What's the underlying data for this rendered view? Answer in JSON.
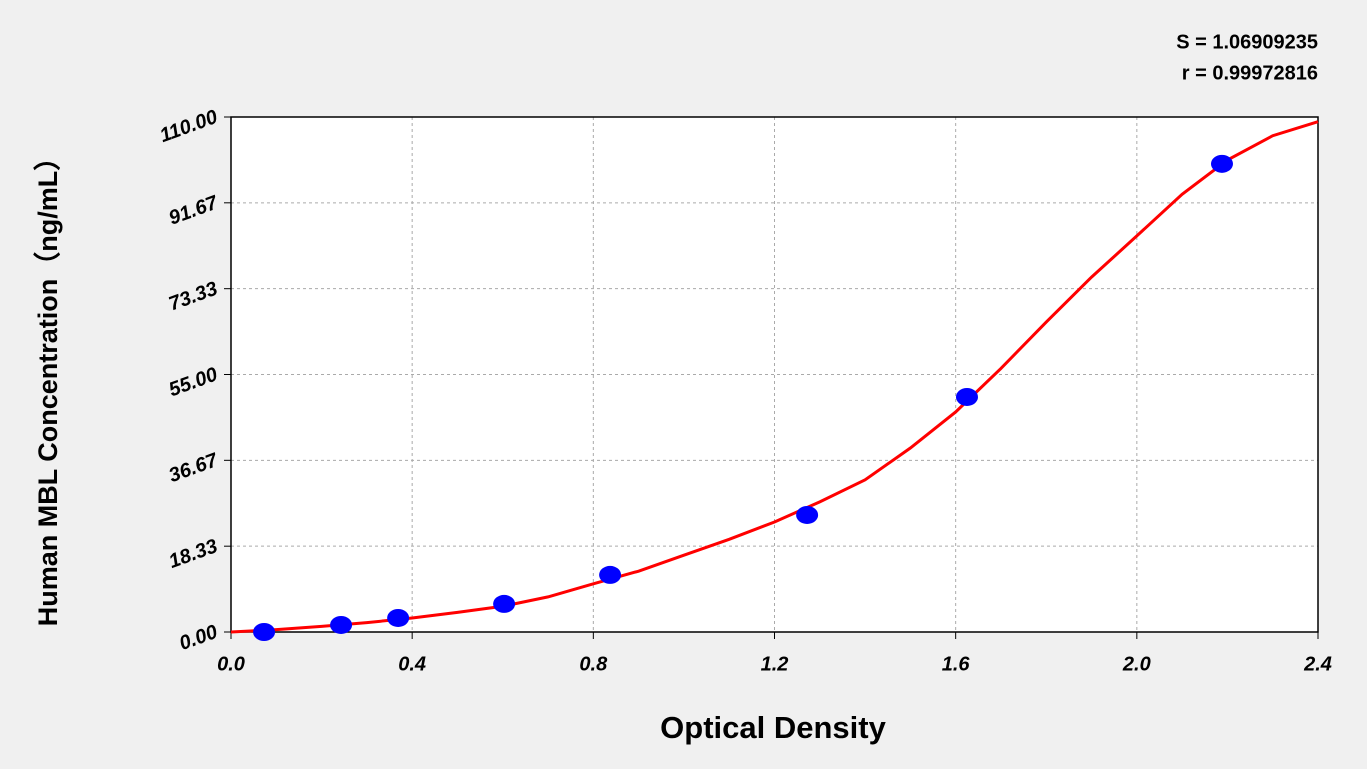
{
  "chart_data": {
    "type": "scatter",
    "x_label": "Optical Density",
    "y_label": "Human MBL Concentration（ng/mL）",
    "annotations": [
      "S = 1.06909235",
      "r = 0.99972816"
    ],
    "xlim": [
      0,
      2.4
    ],
    "ylim": [
      0,
      110
    ],
    "xticks": [
      {
        "value": 0,
        "label": "0.0"
      },
      0.4,
      0.8,
      1.2,
      1.6,
      {
        "value": 2,
        "label": "2.0"
      },
      2.4
    ],
    "yticks": [
      {
        "value": 0,
        "label": "0.00"
      },
      18.33,
      36.67,
      {
        "value": 55,
        "label": "55.00"
      },
      73.33,
      91.67,
      {
        "value": 110,
        "label": "110.00"
      }
    ],
    "grid": true,
    "series": [
      {
        "mode": "lines",
        "color": "#ff0000",
        "x": [
          0,
          0.1,
          0.2,
          0.3,
          0.4,
          0.5,
          0.6,
          0.7,
          0.8,
          0.9,
          1.0,
          1.1,
          1.2,
          1.3,
          1.4,
          1.5,
          1.6,
          1.7,
          1.8,
          1.9,
          2.0,
          2.1,
          2.2,
          2.3,
          2.4
        ],
        "values": [
          0,
          0.5,
          1.2,
          2.0,
          3.0,
          4.2,
          5.5,
          7.5,
          10.3,
          13,
          16.4,
          19.8,
          23.5,
          27.8,
          32.5,
          39.3,
          47,
          56.3,
          66.2,
          75.8,
          84.6,
          93.5,
          100.8,
          106,
          109
        ]
      },
      {
        "mode": "markers",
        "color": "#0000ff",
        "x": [
          0.073,
          0.243,
          0.369,
          0.603,
          0.837,
          1.272,
          1.625,
          2.188
        ],
        "values": [
          0,
          1.5,
          3.0,
          6.0,
          12.2,
          25.0,
          50.2,
          100.0
        ]
      }
    ]
  }
}
